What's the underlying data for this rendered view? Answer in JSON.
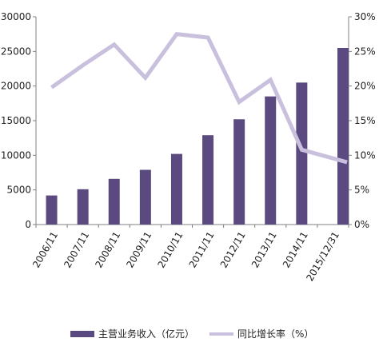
{
  "chart_data": {
    "type": "bar",
    "categories": [
      "2006/11",
      "2007/11",
      "2008/11",
      "2009/11",
      "2010/11",
      "2011/11",
      "2012/11",
      "2013/11",
      "2014/11",
      "2015/12/31"
    ],
    "series": [
      {
        "name": "主营业务收入（亿元）",
        "type": "bar",
        "axis": "left",
        "color": "#5b4a80",
        "values": [
          4200,
          5100,
          6600,
          7900,
          10200,
          12900,
          15200,
          18500,
          20500,
          25500
        ]
      },
      {
        "name": "同比增长率（%）",
        "type": "line",
        "axis": "right",
        "color": "#c9c0de",
        "values": [
          19.8,
          23.0,
          26.0,
          21.2,
          27.5,
          27.0,
          17.7,
          20.9,
          10.8,
          9.0
        ]
      }
    ],
    "y_left": {
      "min": 0,
      "max": 30000,
      "ticks": [
        "0",
        "5000",
        "10000",
        "15000",
        "20000",
        "25000",
        "30000"
      ]
    },
    "y_right": {
      "min": 0,
      "max": 30,
      "ticks": [
        "0%",
        "5%",
        "10%",
        "15%",
        "20%",
        "25%",
        "30%"
      ]
    },
    "grid": false,
    "legend_position": "bottom"
  }
}
